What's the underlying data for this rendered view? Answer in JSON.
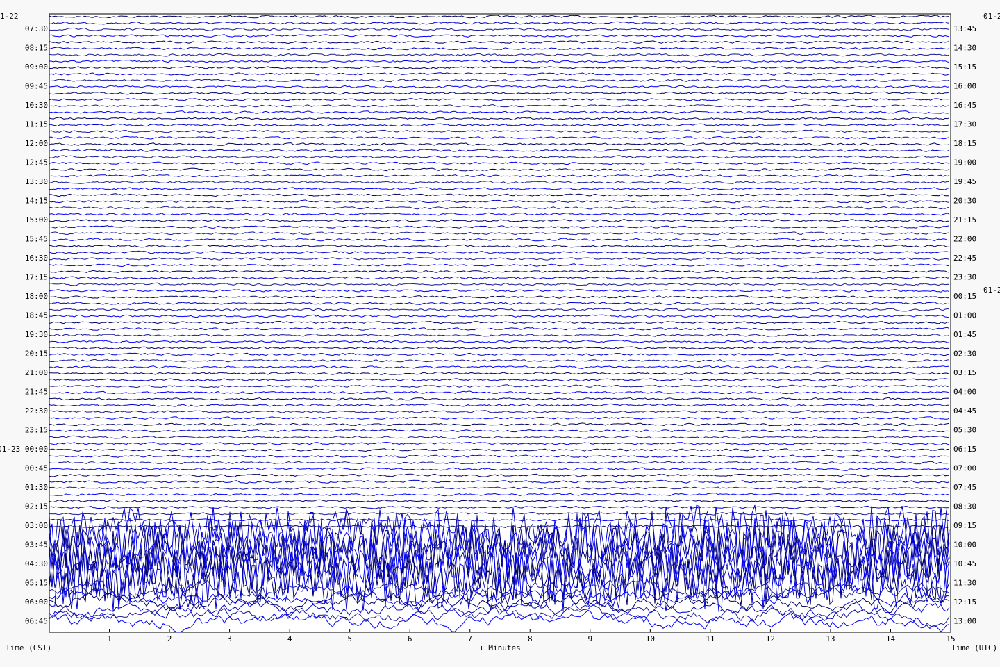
{
  "chart_data": {
    "type": "helicorder",
    "xlabel": "+ Minutes",
    "left_axis_label": "Time (CST)",
    "right_axis_label": "Time (UTC)",
    "xlim": [
      0,
      15
    ],
    "xticks": [
      1,
      2,
      3,
      4,
      5,
      6,
      7,
      8,
      9,
      10,
      11,
      12,
      13,
      14,
      15
    ],
    "left_date_label": "1-22",
    "right_date_labels": [
      "01-2",
      "01-2"
    ],
    "left_labels": [
      "07:30",
      "08:15",
      "09:00",
      "09:45",
      "10:30",
      "11:15",
      "12:00",
      "12:45",
      "13:30",
      "14:15",
      "15:00",
      "15:45",
      "16:30",
      "17:15",
      "18:00",
      "18:45",
      "19:30",
      "20:15",
      "21:00",
      "21:45",
      "22:30",
      "23:15",
      "01-23 00:00",
      "00:45",
      "01:30",
      "02:15",
      "03:00",
      "03:45",
      "04:30",
      "05:15",
      "06:00",
      "06:45"
    ],
    "right_labels": [
      "13:45",
      "14:30",
      "15:15",
      "16:00",
      "16:45",
      "17:30",
      "18:15",
      "19:00",
      "19:45",
      "20:30",
      "21:15",
      "22:00",
      "22:45",
      "23:30",
      "00:15",
      "01:00",
      "01:45",
      "02:30",
      "03:15",
      "04:00",
      "04:45",
      "05:30",
      "06:15",
      "07:00",
      "07:45",
      "08:30",
      "09:15",
      "10:00",
      "10:45",
      "11:30",
      "12:15",
      "13:00"
    ]
  }
}
